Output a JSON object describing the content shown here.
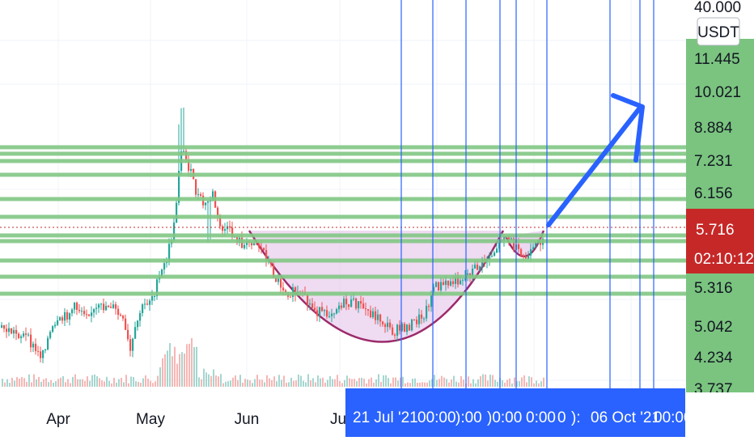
{
  "chart_data": {
    "type": "candlestick",
    "price_axis": {
      "unit_label": "USDT",
      "ticks": [
        "40.000",
        "11.445",
        "10.021",
        "8.884",
        "7.231",
        "6.156",
        "5.316",
        "5.042",
        "4.234",
        "3.737"
      ],
      "log_scale": true,
      "current_price": "5.716",
      "countdown": "02:10:12"
    },
    "time_axis": {
      "labels": [
        "Apr",
        "May",
        "Jun",
        "Ju"
      ],
      "selected_range_labels": [
        "21 Jul '21",
        "00:00",
        "):00",
        ")0:00",
        "0:00",
        "0",
        "):",
        "06 Oct '21",
        "00:00"
      ]
    },
    "colors": {
      "up": "#26a69a",
      "down": "#ef5350",
      "support_line": "#81c784",
      "vertical_line": "#2962ff",
      "arrow": "#2962ff",
      "cup": "#9c2a6b",
      "cup_fill": "#e1bee7",
      "price_label_bg": "#c62828",
      "axis_green_bg": "#7ac47f",
      "range_bg": "#2962ff"
    },
    "grid": true,
    "pattern": "cup-and-handle"
  }
}
